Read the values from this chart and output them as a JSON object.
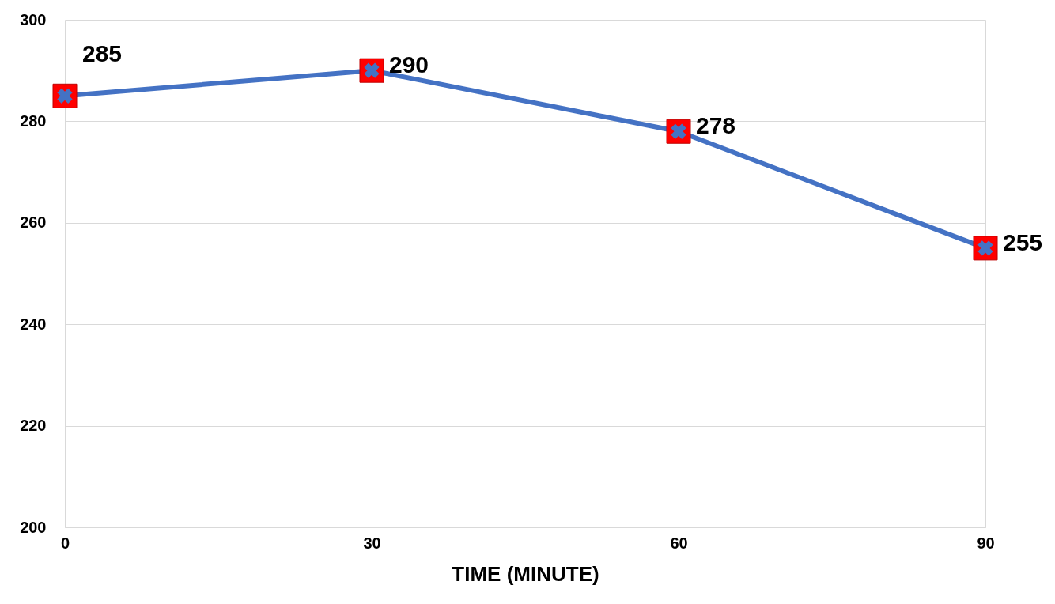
{
  "chart_data": {
    "type": "line",
    "xlabel": "TIME (MINUTE)",
    "x": [
      0,
      30,
      60,
      90
    ],
    "series": [
      {
        "color": "#4472c4",
        "values": [
          285,
          290,
          278,
          255
        ]
      }
    ],
    "xlim": [
      0,
      90
    ],
    "xticks": [
      0,
      30,
      60,
      90
    ],
    "ylim": [
      200,
      300
    ],
    "yticks": [
      200,
      220,
      240,
      260,
      280,
      300
    ],
    "grid": true,
    "marker": "cross",
    "data_labels": true
  }
}
